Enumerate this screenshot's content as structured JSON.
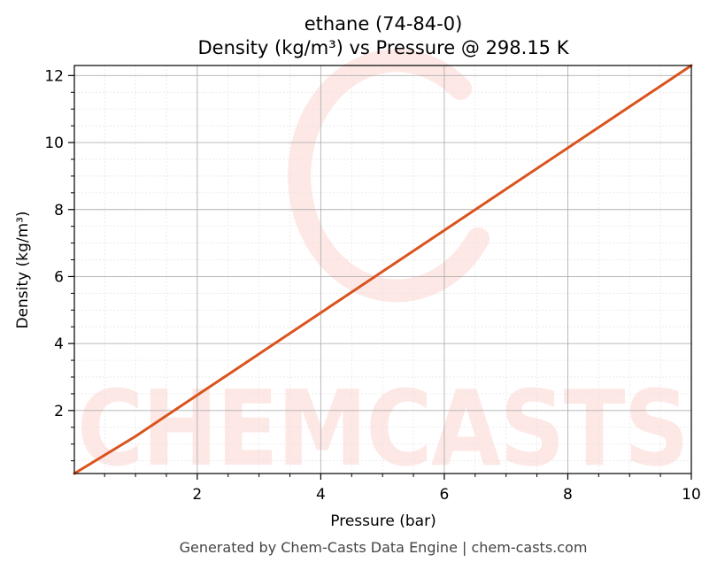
{
  "footer": "Generated by Chem-Casts Data Engine | chem-casts.com",
  "watermark": "CHEMCASTS",
  "colors": {
    "line": "#d9541e",
    "watermark": "#fde8e6",
    "major_grid": "#b0b0b0",
    "minor_grid": "#e4e4e4"
  },
  "chart_data": {
    "type": "line",
    "title": "ethane (74-84-0)",
    "subtitle": "Density (kg/m³) vs Pressure @ 298.15 K",
    "xlabel": "Pressure (bar)",
    "ylabel": "Density (kg/m³)",
    "xlim": [
      0.01,
      10
    ],
    "ylim": [
      0.12,
      12.3
    ],
    "xticks": [
      2,
      4,
      6,
      8,
      10
    ],
    "yticks": [
      2,
      4,
      6,
      8,
      10,
      12
    ],
    "x_minor_step": 0.5,
    "y_minor_step": 0.5,
    "grid": true,
    "series": [
      {
        "color": "#d9541e",
        "x": [
          0.01,
          1,
          2,
          3,
          4,
          5,
          6,
          7,
          8,
          9,
          10
        ],
        "y": [
          0.12,
          1.23,
          2.46,
          3.69,
          4.92,
          6.15,
          7.38,
          8.61,
          9.84,
          11.07,
          12.3
        ]
      }
    ]
  }
}
